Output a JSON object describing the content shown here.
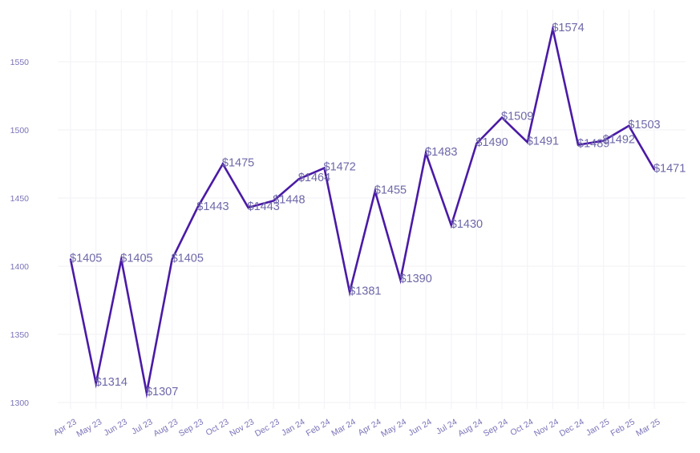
{
  "chart_data": {
    "type": "line",
    "title": "",
    "xlabel": "",
    "ylabel": "",
    "categories": [
      "Apr 23",
      "May 23",
      "Jun 23",
      "Jul 23",
      "Aug 23",
      "Sep 23",
      "Oct 23",
      "Nov 23",
      "Dec 23",
      "Jan 24",
      "Feb 24",
      "Mar 24",
      "Apr 24",
      "May 24",
      "Jun 24",
      "Jul 24",
      "Aug 24",
      "Sep 24",
      "Oct 24",
      "Nov 24",
      "Dec 24",
      "Jan 25",
      "Feb 25",
      "Mar 25"
    ],
    "series": [
      {
        "values": [
          1405,
          1314,
          1405,
          1307,
          1405,
          1443,
          1475,
          1443,
          1448,
          1464,
          1472,
          1381,
          1455,
          1390,
          1483,
          1430,
          1490,
          1509,
          1491,
          1574,
          1489,
          1492,
          1503,
          1471
        ],
        "labels": [
          "$1405",
          "$1314",
          "$1405",
          "$1307",
          "$1405",
          "$1443",
          "$1475",
          "$1443",
          "$1448",
          "$1464",
          "$1472",
          "$1381",
          "$1455",
          "$1390",
          "$1483",
          "$1430",
          "$1490",
          "$1509",
          "$1491",
          "$1574",
          "$1489",
          "$1492",
          "$1503",
          "$1471"
        ]
      }
    ],
    "y_ticks": [
      1300,
      1350,
      1400,
      1450,
      1500,
      1550
    ],
    "ylim": [
      1296,
      1588
    ],
    "grid": true,
    "legend": "none",
    "line_color": "#4a1aa6",
    "grid_color": "#f4f3f8",
    "tick_color": "#7a73b8",
    "label_color": "#6e68a8"
  }
}
